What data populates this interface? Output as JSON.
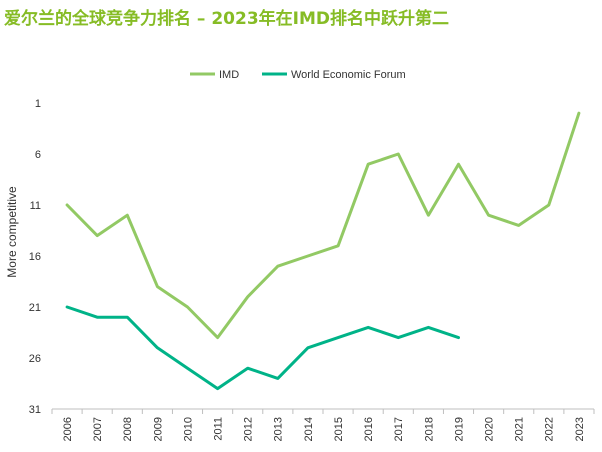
{
  "chart_data": {
    "type": "line",
    "title": "爱尔兰的全球竞争力排名 – 2023年在IMD排名中跃升第二",
    "xlabel": "",
    "ylabel": "More competitive",
    "x": [
      "2006",
      "2007",
      "2008",
      "2009",
      "2010",
      "2011",
      "2012",
      "2013",
      "2014",
      "2015",
      "2016",
      "2017",
      "2018",
      "2019",
      "2020",
      "2021",
      "2022",
      "2023"
    ],
    "yticks": [
      1,
      6,
      11,
      16,
      21,
      26,
      31
    ],
    "ylim": [
      31,
      1
    ],
    "y_inverted": true,
    "grid": false,
    "legend_position": "top-center",
    "series": [
      {
        "name": "IMD",
        "color": "#92c964",
        "values": [
          11,
          14,
          12,
          19,
          21,
          24,
          20,
          17,
          16,
          15,
          7,
          6,
          12,
          7,
          12,
          13,
          11,
          2
        ]
      },
      {
        "name": "World Economic Forum",
        "color": "#00b388",
        "values": [
          21,
          22,
          22,
          25,
          27,
          29,
          27,
          28,
          25,
          24,
          23,
          24,
          23,
          24,
          null,
          null,
          null,
          null
        ]
      }
    ]
  }
}
